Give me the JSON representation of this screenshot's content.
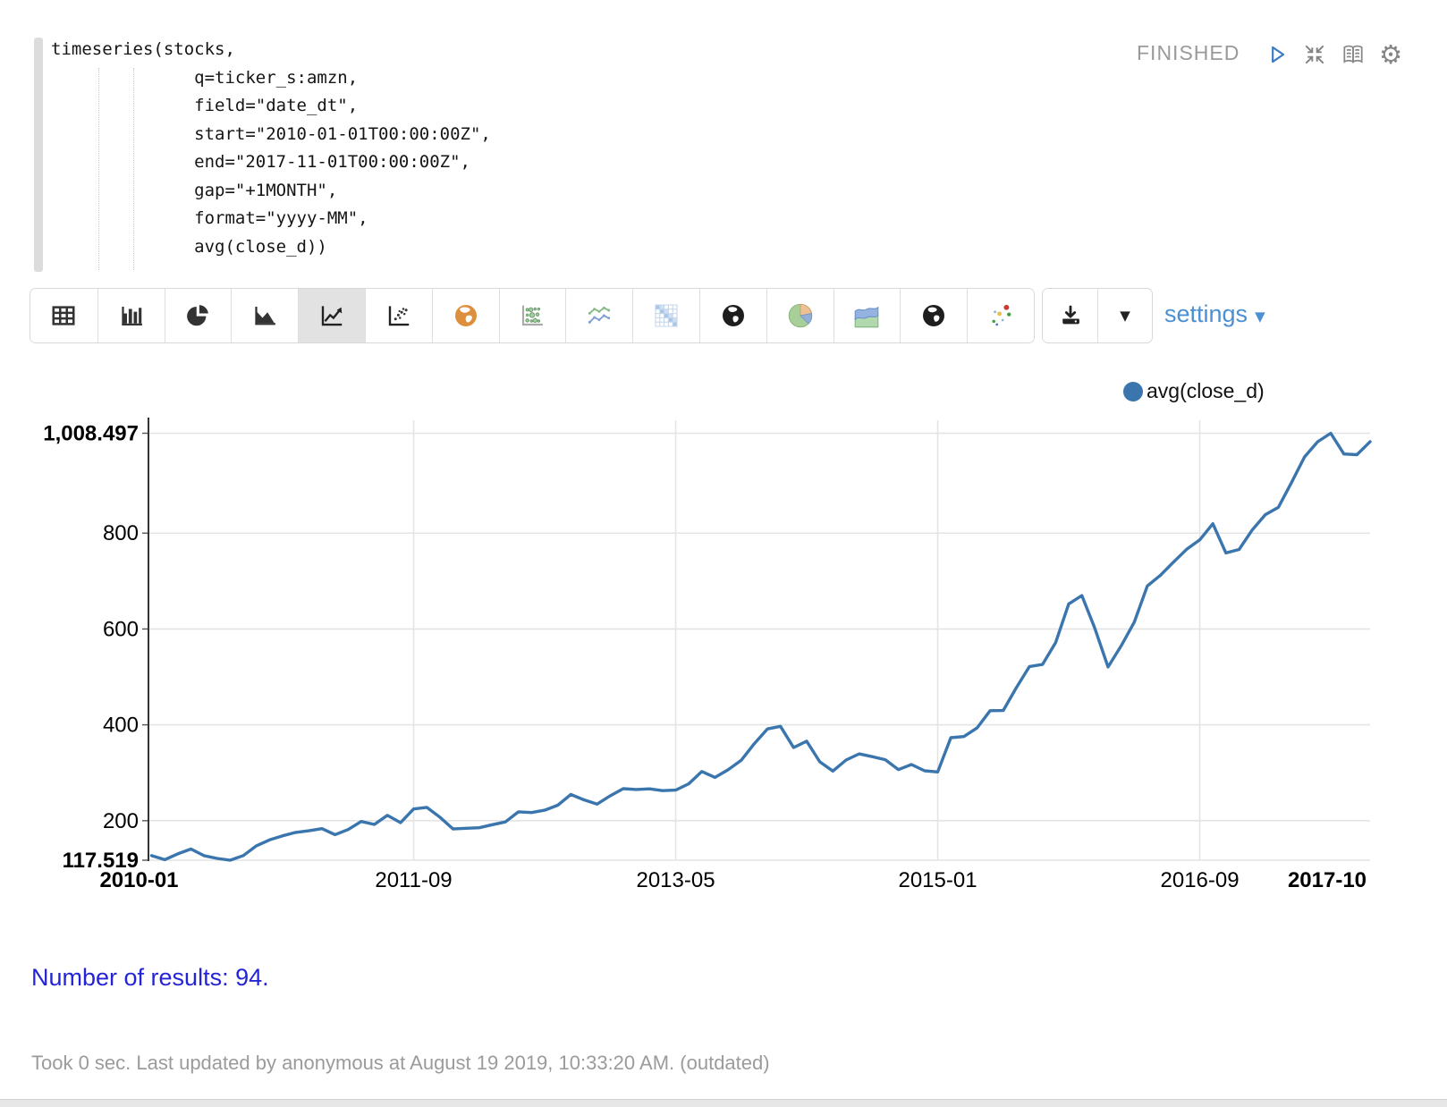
{
  "paragraph": {
    "status": "FINISHED",
    "code": {
      "lines": [
        "timeseries(stocks,",
        "              q=ticker_s:amzn,",
        "              field=\"date_dt\",",
        "              start=\"2010-01-01T00:00:00Z\",",
        "              end=\"2017-11-01T00:00:00Z\",",
        "              gap=\"+1MONTH\",",
        "              format=\"yyyy-MM\",",
        "              avg(close_d))"
      ]
    },
    "controls": [
      "run-icon",
      "shrink-icon",
      "report-icon",
      "gear-icon"
    ]
  },
  "toolbar": {
    "chart_types": [
      "table",
      "bar-chart",
      "pie-chart",
      "area-chart",
      "line-chart",
      "scatter-plot",
      "world-map",
      "bubble-chart",
      "multi-line-chart",
      "heatmap",
      "globe",
      "pie-chart-colored",
      "area-chart-colored",
      "globe-2",
      "scatter-colored"
    ],
    "selected": "line-chart",
    "download_label": "download-icon",
    "settings_label": "settings"
  },
  "legend": {
    "label": "avg(close_d)",
    "color": "#3a76ad"
  },
  "chart_data": {
    "type": "line",
    "title": "",
    "xlabel": "",
    "ylabel": "",
    "grid": true,
    "legend_position": "top-right",
    "ylim": [
      117.519,
      1008.497
    ],
    "y_ticks": [
      {
        "value": 1008.497,
        "label": "1,008.497",
        "bold": true
      },
      {
        "value": 800,
        "label": "800"
      },
      {
        "value": 600,
        "label": "600"
      },
      {
        "value": 400,
        "label": "400"
      },
      {
        "value": 200,
        "label": "200"
      },
      {
        "value": 117.519,
        "label": "117.519",
        "bold": true
      }
    ],
    "x_ticks": [
      {
        "index": 0,
        "label": "2010-01",
        "bold": true
      },
      {
        "index": 20,
        "label": "2011-09",
        "grid": true
      },
      {
        "index": 40,
        "label": "2013-05",
        "grid": true
      },
      {
        "index": 60,
        "label": "2015-01",
        "grid": true
      },
      {
        "index": 80,
        "label": "2016-09",
        "grid": true
      },
      {
        "index": 93,
        "label": "2017-10",
        "bold": true
      }
    ],
    "x": [
      "2010-01",
      "2010-02",
      "2010-03",
      "2010-04",
      "2010-05",
      "2010-06",
      "2010-07",
      "2010-08",
      "2010-09",
      "2010-10",
      "2010-11",
      "2010-12",
      "2011-01",
      "2011-02",
      "2011-03",
      "2011-04",
      "2011-05",
      "2011-06",
      "2011-07",
      "2011-08",
      "2011-09",
      "2011-10",
      "2011-11",
      "2011-12",
      "2012-01",
      "2012-02",
      "2012-03",
      "2012-04",
      "2012-05",
      "2012-06",
      "2012-07",
      "2012-08",
      "2012-09",
      "2012-10",
      "2012-11",
      "2012-12",
      "2013-01",
      "2013-02",
      "2013-03",
      "2013-04",
      "2013-05",
      "2013-06",
      "2013-07",
      "2013-08",
      "2013-09",
      "2013-10",
      "2013-11",
      "2013-12",
      "2014-01",
      "2014-02",
      "2014-03",
      "2014-04",
      "2014-05",
      "2014-06",
      "2014-07",
      "2014-08",
      "2014-09",
      "2014-10",
      "2014-11",
      "2014-12",
      "2015-01",
      "2015-02",
      "2015-03",
      "2015-04",
      "2015-05",
      "2015-06",
      "2015-07",
      "2015-08",
      "2015-09",
      "2015-10",
      "2015-11",
      "2015-12",
      "2016-01",
      "2016-02",
      "2016-03",
      "2016-04",
      "2016-05",
      "2016-06",
      "2016-07",
      "2016-08",
      "2016-09",
      "2016-10",
      "2016-11",
      "2016-12",
      "2017-01",
      "2017-02",
      "2017-03",
      "2017-04",
      "2017-05",
      "2017-06",
      "2017-07",
      "2017-08",
      "2017-09",
      "2017-10"
    ],
    "series": [
      {
        "name": "avg(close_d)",
        "color": "#3a76ad",
        "values": [
          127.0,
          118.6,
          130.7,
          140.9,
          127.1,
          121.3,
          117.519,
          127.3,
          147.6,
          159.9,
          168.4,
          175.6,
          179.0,
          183.3,
          170.8,
          181.5,
          198.4,
          192.1,
          211.2,
          195.8,
          224.5,
          227.8,
          207.5,
          182.9,
          184.1,
          185.3,
          191.6,
          197.3,
          218.4,
          217.0,
          221.9,
          232.2,
          254.7,
          243.4,
          234.6,
          251.8,
          266.8,
          265.1,
          266.4,
          262.6,
          263.9,
          277.1,
          302.6,
          290.3,
          306.1,
          326.0,
          360.7,
          391.4,
          396.9,
          352.6,
          365.8,
          322.7,
          303.5,
          326.5,
          339.4,
          333.6,
          327.3,
          306.5,
          317.2,
          304.1,
          301.7,
          373.1,
          375.6,
          393.5,
          429.5,
          429.8,
          477.4,
          521.6,
          526.0,
          571.7,
          652.2,
          669.9,
          600.9,
          520.7,
          564.6,
          614.2,
          689.8,
          712.1,
          739.6,
          766.3,
          785.8,
          819.7,
          758.6,
          765.9,
          806.4,
          838.5,
          853.9,
          905.5,
          959.1,
          990.7,
          1008.497,
          965.3,
          963.8,
          990.9
        ]
      }
    ]
  },
  "results": {
    "text": "Number of results: 94."
  },
  "footer": {
    "text": "Took 0 sec. Last updated by anonymous at August 19 2019, 10:33:20 AM. (outdated)"
  },
  "colors": {
    "accent_blue": "#4a90d2",
    "link_blue": "#2424d6",
    "line_blue": "#3a76ad",
    "status_gray": "#9a9a9a"
  }
}
